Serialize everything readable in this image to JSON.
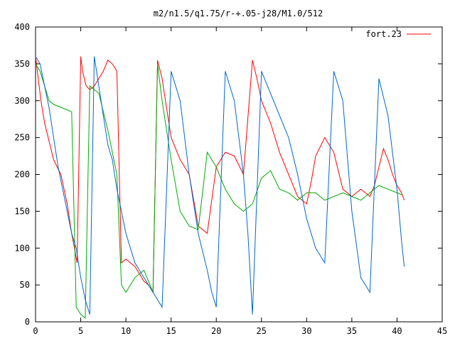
{
  "chart_data": {
    "type": "line",
    "title": "m2/n1.5/q1.75/r-+.05-j28/M1.0/512",
    "xlabel": "",
    "ylabel": "",
    "xlim": [
      0,
      45
    ],
    "ylim": [
      0,
      400
    ],
    "xticks": [
      0,
      5,
      10,
      15,
      20,
      25,
      30,
      35,
      40,
      45
    ],
    "yticks": [
      0,
      50,
      100,
      150,
      200,
      250,
      300,
      350,
      400
    ],
    "grid": false,
    "legend": {
      "position": "top-right",
      "entries": [
        "fort.23"
      ]
    },
    "series": [
      {
        "name": "fort.23",
        "color": "#ff0000",
        "x": [
          0.0,
          0.3,
          0.6,
          1.0,
          1.6,
          2.0,
          2.8,
          3.5,
          4.0,
          4.6,
          5.0,
          5.2,
          5.6,
          6.0,
          6.5,
          7.0,
          7.5,
          8.0,
          8.5,
          9.0,
          9.5,
          10.0,
          11.0,
          12.0,
          12.5,
          13.0,
          13.5,
          14.0,
          15.0,
          16.0,
          17.0,
          18.0,
          19.0,
          20.0,
          21.0,
          22.0,
          23.0,
          24.0,
          24.5,
          25.0,
          26.0,
          27.0,
          28.0,
          29.0,
          30.0,
          30.5,
          31.0,
          32.0,
          33.0,
          34.0,
          35.0,
          35.5,
          36.0,
          36.5,
          37.0,
          37.5,
          38.0,
          38.5,
          39.0,
          39.5,
          40.0,
          40.5,
          40.8
        ],
        "y": [
          360,
          330,
          300,
          270,
          240,
          220,
          200,
          160,
          120,
          80,
          360,
          340,
          320,
          315,
          320,
          330,
          340,
          355,
          350,
          340,
          80,
          85,
          75,
          55,
          50,
          40,
          355,
          330,
          250,
          220,
          200,
          130,
          120,
          210,
          230,
          225,
          200,
          355,
          330,
          300,
          270,
          230,
          200,
          170,
          160,
          190,
          225,
          250,
          230,
          180,
          170,
          175,
          180,
          175,
          170,
          185,
          210,
          235,
          220,
          200,
          185,
          175,
          165
        ]
      },
      {
        "name": "",
        "color": "#00aa00",
        "x": [
          0.0,
          0.5,
          1.0,
          1.5,
          2.0,
          3.0,
          4.0,
          4.5,
          5.0,
          5.5,
          6.0,
          7.0,
          8.0,
          9.0,
          9.5,
          10.0,
          11.0,
          12.0,
          13.0,
          13.5,
          14.0,
          15.0,
          16.0,
          17.0,
          18.0,
          19.0,
          20.0,
          21.0,
          22.0,
          23.0,
          24.0,
          25.0,
          26.0,
          27.0,
          28.0,
          29.0,
          30.0,
          31.0,
          32.0,
          33.0,
          34.0,
          35.0,
          36.0,
          37.0,
          38.0,
          39.0,
          40.0,
          40.6
        ],
        "y": [
          350,
          340,
          320,
          300,
          295,
          290,
          285,
          20,
          10,
          5,
          320,
          310,
          260,
          200,
          50,
          40,
          60,
          70,
          40,
          350,
          300,
          220,
          150,
          130,
          125,
          230,
          210,
          180,
          160,
          150,
          160,
          195,
          205,
          180,
          175,
          165,
          175,
          175,
          165,
          170,
          175,
          170,
          165,
          175,
          185,
          180,
          175,
          172
        ]
      },
      {
        "name": "",
        "color": "#0066cc",
        "x": [
          0.0,
          0.5,
          1.0,
          1.5,
          2.0,
          2.5,
          3.0,
          3.5,
          4.0,
          4.5,
          5.0,
          5.5,
          6.0,
          6.5,
          7.0,
          7.5,
          8.0,
          8.5,
          9.0,
          9.5,
          10.0,
          11.0,
          12.0,
          13.0,
          14.0,
          15.0,
          16.0,
          17.0,
          18.0,
          19.0,
          19.5,
          20.0,
          21.0,
          22.0,
          23.0,
          23.5,
          24.0,
          25.0,
          26.0,
          27.0,
          28.0,
          29.0,
          30.0,
          31.0,
          32.0,
          33.0,
          34.0,
          35.0,
          36.0,
          37.0,
          38.0,
          39.0,
          40.0,
          40.5,
          40.8
        ],
        "y": [
          360,
          350,
          320,
          290,
          250,
          210,
          180,
          150,
          120,
          100,
          60,
          30,
          10,
          360,
          320,
          280,
          240,
          220,
          180,
          150,
          120,
          80,
          60,
          40,
          20,
          340,
          300,
          200,
          120,
          70,
          40,
          20,
          340,
          300,
          200,
          120,
          10,
          340,
          310,
          280,
          250,
          200,
          140,
          100,
          80,
          340,
          300,
          150,
          60,
          40,
          330,
          280,
          180,
          110,
          75
        ]
      }
    ]
  }
}
